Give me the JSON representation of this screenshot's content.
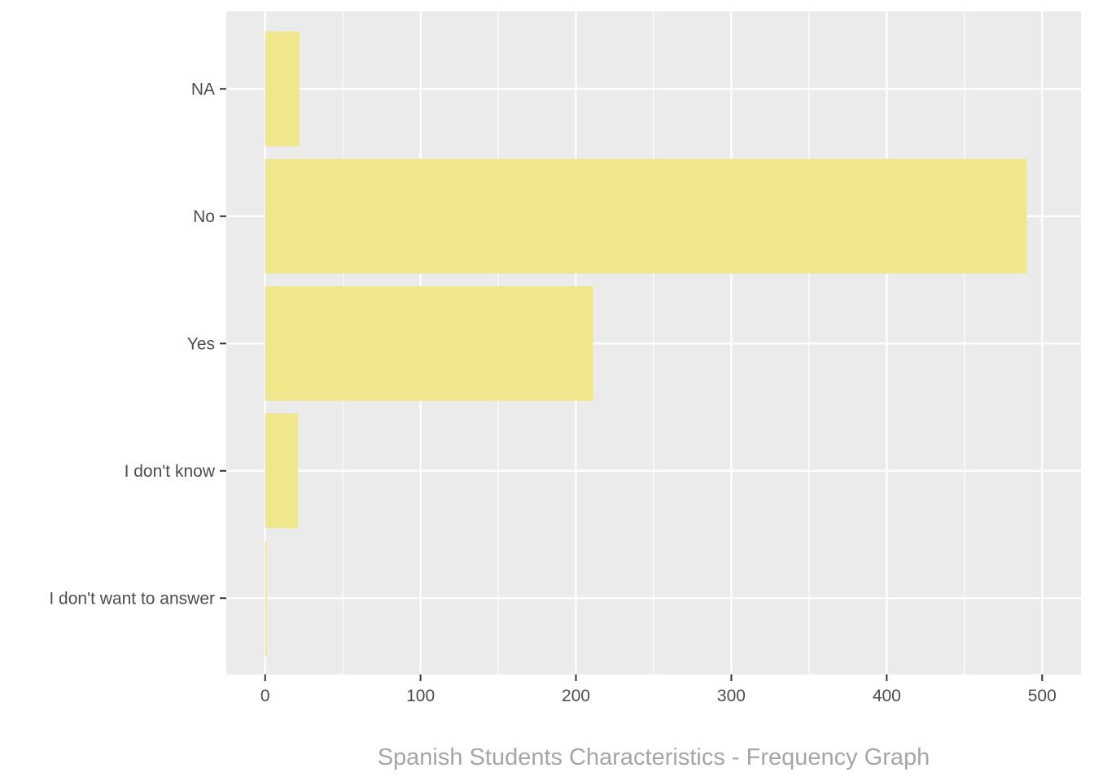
{
  "chart_data": {
    "type": "bar",
    "orientation": "horizontal",
    "categories": [
      "NA",
      "No",
      "Yes",
      "I don't know",
      "I don't want to answer"
    ],
    "values": [
      22,
      490,
      211,
      21,
      1
    ],
    "xlim": [
      -25,
      525
    ],
    "xticks": [
      0,
      100,
      200,
      300,
      400,
      500
    ],
    "xlabel": "Spanish Students Characteristics - Frequency Graph",
    "ylabel": "",
    "title": "",
    "grid": true,
    "legend": "none",
    "colors": {
      "bar": "#f0e68c",
      "panel": "#ebebeb",
      "grid": "#ffffff",
      "text": "#4d4d4d",
      "caption": "#a6a6a6"
    }
  }
}
